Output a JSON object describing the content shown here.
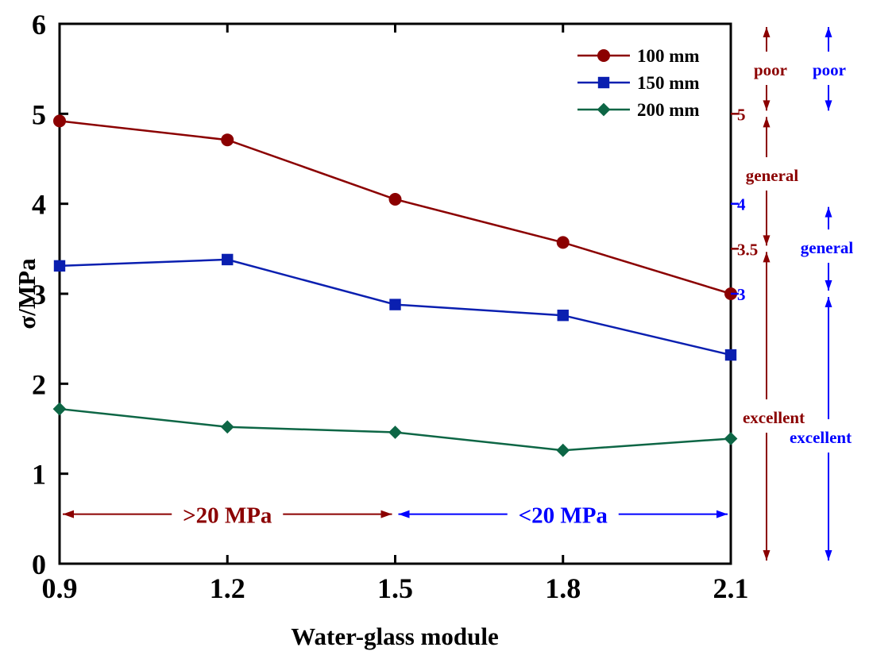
{
  "chart_data": {
    "type": "line",
    "title": "",
    "xlabel": "Water-glass module",
    "ylabel": "σ/MPa",
    "xlim": [
      0.9,
      2.1
    ],
    "ylim": [
      0,
      6
    ],
    "x": [
      0.9,
      1.2,
      1.5,
      1.8,
      2.1
    ],
    "x_tick_labels": [
      "0.9",
      "1.2",
      "1.5",
      "1.8",
      "2.1"
    ],
    "y_ticks": [
      0,
      1,
      2,
      3,
      4,
      5,
      6
    ],
    "y_tick_labels": [
      "0",
      "1",
      "2",
      "3",
      "4",
      "5",
      "6"
    ],
    "grid": false,
    "legend_position": "top-right",
    "series": [
      {
        "name": "100 mm",
        "color": "#8b0000",
        "marker": "circle",
        "values": [
          4.92,
          4.71,
          4.05,
          3.57,
          3.0
        ]
      },
      {
        "name": "150 mm",
        "color": "#0a1fb0",
        "marker": "square",
        "values": [
          3.31,
          3.38,
          2.88,
          2.76,
          2.32
        ]
      },
      {
        "name": "200 mm",
        "color": "#0d6645",
        "marker": "diamond",
        "values": [
          1.72,
          1.52,
          1.46,
          1.26,
          1.39
        ]
      }
    ],
    "right_scales": [
      {
        "color": "#8b0000",
        "ticks": [
          {
            "value": 5,
            "label": "5"
          },
          {
            "value": 3.5,
            "label": "3.5"
          }
        ],
        "ranges": [
          {
            "label": "poor",
            "from": 5,
            "to": 6
          },
          {
            "label": "general",
            "from": 3.5,
            "to": 5
          },
          {
            "label": "excellent",
            "from": 0,
            "to": 3.5
          }
        ]
      },
      {
        "color": "#0000ff",
        "ticks": [
          {
            "value": 4,
            "label": "4"
          },
          {
            "value": 3,
            "label": "3"
          }
        ],
        "ranges": [
          {
            "label": "poor",
            "from": 5,
            "to": 6
          },
          {
            "label": "general",
            "from": 3,
            "to": 4
          },
          {
            "label": "excellent",
            "from": 0,
            "to": 3
          }
        ]
      }
    ],
    "x_ranges": [
      {
        "label": ">20 MPa",
        "from": 0.9,
        "to": 1.5,
        "y": 0.55,
        "color": "#8b0000"
      },
      {
        "label": "<20 MPa",
        "from": 1.5,
        "to": 2.1,
        "y": 0.55,
        "color": "#0000ff"
      }
    ]
  }
}
